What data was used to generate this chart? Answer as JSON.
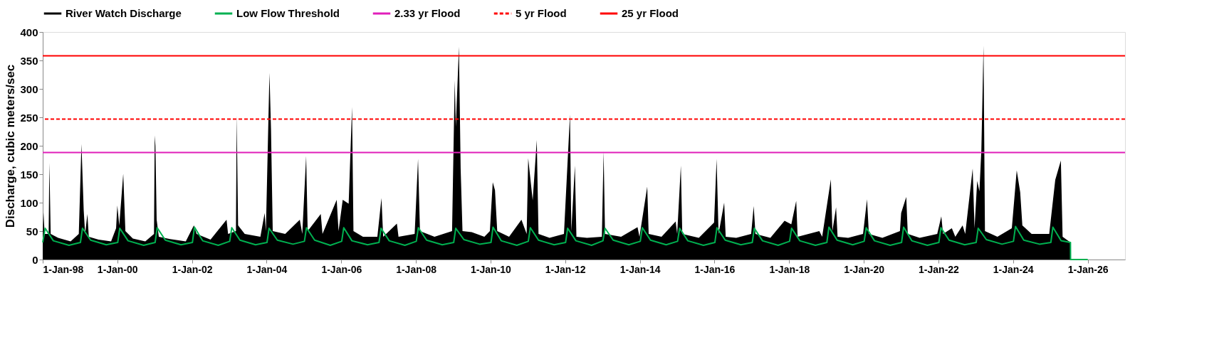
{
  "chart_data": {
    "type": "area",
    "ylabel": "Discharge, cubic meters/sec",
    "legend": "top",
    "grid": false,
    "marker": "none",
    "xlim": [
      "1998-01-01",
      "2027-01-01"
    ],
    "xticks": [
      {
        "value": "1998-01-01",
        "label": "1-Jan-98"
      },
      {
        "value": "2000-01-01",
        "label": "1-Jan-00"
      },
      {
        "value": "2002-01-01",
        "label": "1-Jan-02"
      },
      {
        "value": "2004-01-01",
        "label": "1-Jan-04"
      },
      {
        "value": "2006-01-01",
        "label": "1-Jan-06"
      },
      {
        "value": "2008-01-01",
        "label": "1-Jan-08"
      },
      {
        "value": "2010-01-01",
        "label": "1-Jan-10"
      },
      {
        "value": "2012-01-01",
        "label": "1-Jan-12"
      },
      {
        "value": "2014-01-01",
        "label": "1-Jan-14"
      },
      {
        "value": "2016-01-01",
        "label": "1-Jan-16"
      },
      {
        "value": "2018-01-01",
        "label": "1-Jan-18"
      },
      {
        "value": "2020-01-01",
        "label": "1-Jan-20"
      },
      {
        "value": "2022-01-01",
        "label": "1-Jan-22"
      },
      {
        "value": "2024-01-01",
        "label": "1-Jan-24"
      },
      {
        "value": "2026-01-01",
        "label": "1-Jan-26"
      }
    ],
    "ylim": [
      0,
      400
    ],
    "yticks": [
      0,
      50,
      100,
      150,
      200,
      250,
      300,
      350,
      400
    ],
    "series": [
      {
        "name": "River Watch Discharge",
        "color": "#000000",
        "x": [
          "1998-01-01",
          "1998-01-08",
          "1998-01-20",
          "1998-02-28",
          "1998-03-07",
          "1998-03-20",
          "1998-06-01",
          "1998-10-01",
          "1998-12-20",
          "1999-01-15",
          "1999-02-06",
          "1999-02-20",
          "1999-03-14",
          "1999-03-28",
          "1999-07-01",
          "1999-11-01",
          "1999-12-20",
          "2000-01-01",
          "2000-01-20",
          "2000-02-28",
          "2000-03-20",
          "2000-06-01",
          "2000-10-01",
          "2000-12-25",
          "2001-01-01",
          "2001-01-08",
          "2001-01-20",
          "2001-02-10",
          "2001-06-01",
          "2001-11-01",
          "2002-01-19",
          "2002-02-15",
          "2002-07-01",
          "2002-12-05",
          "2002-12-20",
          "2003-03-07",
          "2003-03-14",
          "2003-03-28",
          "2003-06-01",
          "2003-11-01",
          "2003-12-13",
          "2003-12-25",
          "2004-01-29",
          "2004-02-13",
          "2004-03-01",
          "2004-07-01",
          "2004-11-21",
          "2004-12-15",
          "2005-01-22",
          "2005-02-06",
          "2005-06-14",
          "2005-07-01",
          "2005-11-17",
          "2005-12-05",
          "2006-01-15",
          "2006-03-14",
          "2006-04-16",
          "2006-04-30",
          "2006-08-01",
          "2006-12-20",
          "2007-01-29",
          "2007-02-15",
          "2007-06-29",
          "2007-07-15",
          "2007-12-20",
          "2008-01-22",
          "2008-02-10",
          "2008-07-01",
          "2008-12-20",
          "2009-01-15",
          "2009-01-26",
          "2009-02-25",
          "2009-03-14",
          "2009-04-01",
          "2009-07-01",
          "2009-11-01",
          "2009-12-25",
          "2010-01-22",
          "2010-02-13",
          "2010-03-07",
          "2010-07-01",
          "2010-10-30",
          "2010-12-20",
          "2011-01-04",
          "2011-02-17",
          "2011-03-29",
          "2011-04-15",
          "2011-08-01",
          "2011-12-20",
          "2012-02-17",
          "2012-03-01",
          "2012-04-05",
          "2012-04-20",
          "2012-08-01",
          "2012-12-25",
          "2013-01-11",
          "2013-01-25",
          "2013-07-01",
          "2013-12-09",
          "2013-12-28",
          "2014-03-14",
          "2014-03-28",
          "2014-08-01",
          "2014-12-17",
          "2015-01-01",
          "2015-02-06",
          "2015-02-20",
          "2015-08-01",
          "2015-12-28",
          "2016-01-22",
          "2016-02-10",
          "2016-04-05",
          "2016-04-20",
          "2016-08-01",
          "2016-12-25",
          "2017-01-19",
          "2017-02-05",
          "2017-07-01",
          "2017-11-17",
          "2018-01-22",
          "2018-03-11",
          "2018-03-25",
          "2018-10-23",
          "2018-11-20",
          "2019-02-13",
          "2019-02-28",
          "2019-04-05",
          "2019-04-20",
          "2019-08-01",
          "2019-12-25",
          "2020-02-02",
          "2020-02-20",
          "2020-07-01",
          "2020-12-20",
          "2021-01-01",
          "2021-02-20",
          "2021-03-07",
          "2021-07-01",
          "2021-12-20",
          "2022-01-29",
          "2022-02-15",
          "2022-05-12",
          "2022-06-15",
          "2022-08-25",
          "2022-09-20",
          "2022-12-02",
          "2022-12-20",
          "2023-01-15",
          "2023-02-06",
          "2023-02-25",
          "2023-03-18",
          "2023-04-01",
          "2023-08-01",
          "2023-12-20",
          "2024-02-06",
          "2024-03-11",
          "2024-04-01",
          "2024-07-01",
          "2024-12-20",
          "2025-02-17",
          "2025-04-13",
          "2025-04-30",
          "2025-07-16"
        ],
        "values": [
          40,
          83,
          45,
          45,
          170,
          45,
          38,
          32,
          45,
          203,
          87,
          45,
          80,
          40,
          35,
          32,
          55,
          95,
          60,
          151,
          50,
          37,
          32,
          45,
          218,
          200,
          70,
          40,
          36,
          32,
          60,
          45,
          35,
          70,
          45,
          50,
          253,
          60,
          45,
          40,
          82,
          50,
          328,
          230,
          50,
          45,
          70,
          45,
          182,
          50,
          80,
          45,
          105,
          50,
          105,
          98,
          268,
          50,
          40,
          40,
          108,
          40,
          63,
          40,
          45,
          177,
          50,
          40,
          50,
          315,
          233,
          374,
          160,
          50,
          48,
          40,
          50,
          136,
          122,
          50,
          40,
          70,
          45,
          178,
          104,
          210,
          45,
          38,
          45,
          255,
          50,
          165,
          40,
          38,
          40,
          190,
          45,
          40,
          57,
          40,
          128,
          45,
          40,
          67,
          45,
          165,
          45,
          38,
          65,
          177,
          45,
          100,
          40,
          38,
          45,
          94,
          45,
          38,
          68,
          62,
          103,
          40,
          50,
          40,
          141,
          50,
          92,
          40,
          38,
          45,
          106,
          45,
          38,
          50,
          82,
          110,
          45,
          38,
          45,
          76,
          45,
          55,
          40,
          60,
          45,
          160,
          55,
          138,
          120,
          193,
          376,
          50,
          40,
          55,
          157,
          118,
          60,
          45,
          45,
          140,
          174,
          40,
          30
        ]
      },
      {
        "name": "Low Flow Threshold",
        "type": "line",
        "color": "#00b050",
        "x": [
          "1998-01-01",
          "1998-01-25",
          "1998-04-15",
          "1998-09-15",
          "1999-01-05",
          "1999-01-25",
          "1999-04-15",
          "1999-09-15",
          "2000-01-05",
          "2000-01-25",
          "2000-04-15",
          "2000-09-15",
          "2001-01-05",
          "2001-01-25",
          "2001-04-15",
          "2001-09-15",
          "2002-01-05",
          "2002-01-25",
          "2002-04-15",
          "2002-09-15",
          "2003-01-05",
          "2003-01-25",
          "2003-04-15",
          "2003-09-15",
          "2004-01-05",
          "2004-01-25",
          "2004-04-15",
          "2004-09-15",
          "2005-01-05",
          "2005-01-25",
          "2005-04-15",
          "2005-09-15",
          "2006-01-05",
          "2006-01-25",
          "2006-04-15",
          "2006-09-15",
          "2007-01-05",
          "2007-01-25",
          "2007-04-15",
          "2007-09-15",
          "2008-01-05",
          "2008-01-25",
          "2008-04-15",
          "2008-09-15",
          "2009-01-05",
          "2009-01-25",
          "2009-04-15",
          "2009-09-15",
          "2010-01-05",
          "2010-01-25",
          "2010-04-15",
          "2010-09-15",
          "2011-01-05",
          "2011-01-25",
          "2011-04-15",
          "2011-09-15",
          "2012-01-05",
          "2012-01-25",
          "2012-04-15",
          "2012-09-15",
          "2013-01-05",
          "2013-01-25",
          "2013-04-15",
          "2013-09-15",
          "2014-01-05",
          "2014-01-25",
          "2014-04-15",
          "2014-09-15",
          "2015-01-05",
          "2015-01-25",
          "2015-04-15",
          "2015-09-15",
          "2016-01-05",
          "2016-01-25",
          "2016-04-15",
          "2016-09-15",
          "2017-01-05",
          "2017-01-25",
          "2017-04-15",
          "2017-09-15",
          "2018-01-05",
          "2018-01-25",
          "2018-04-15",
          "2018-09-15",
          "2019-01-05",
          "2019-01-25",
          "2019-04-15",
          "2019-09-15",
          "2020-01-05",
          "2020-01-25",
          "2020-04-15",
          "2020-09-15",
          "2021-01-05",
          "2021-01-25",
          "2021-04-15",
          "2021-09-15",
          "2022-01-05",
          "2022-01-25",
          "2022-04-15",
          "2022-09-15",
          "2023-01-05",
          "2023-01-25",
          "2023-04-15",
          "2023-09-15",
          "2024-01-05",
          "2024-01-25",
          "2024-04-15",
          "2024-09-15",
          "2025-01-05",
          "2025-01-25",
          "2025-04-15",
          "2025-07-16",
          "2025-07-17",
          "2026-01-01"
        ],
        "values": [
          30,
          55,
          33,
          25,
          30,
          55,
          34,
          26,
          30,
          55,
          33,
          25,
          30,
          56,
          34,
          26,
          30,
          57,
          33,
          25,
          32,
          56,
          34,
          26,
          30,
          55,
          34,
          27,
          32,
          56,
          34,
          25,
          32,
          56,
          33,
          26,
          30,
          55,
          33,
          25,
          32,
          56,
          34,
          26,
          30,
          55,
          35,
          27,
          30,
          57,
          33,
          25,
          32,
          56,
          34,
          26,
          30,
          55,
          33,
          25,
          33,
          55,
          34,
          26,
          32,
          56,
          34,
          26,
          32,
          55,
          33,
          25,
          30,
          56,
          34,
          26,
          30,
          55,
          33,
          25,
          32,
          55,
          33,
          25,
          30,
          57,
          34,
          26,
          32,
          56,
          33,
          25,
          30,
          57,
          33,
          25,
          30,
          56,
          34,
          26,
          30,
          55,
          35,
          27,
          32,
          58,
          34,
          27,
          30,
          57,
          33,
          30,
          0,
          0
        ]
      }
    ],
    "ref_lines": [
      {
        "axis": "y",
        "value": 188,
        "label": "2.33 yr Flood",
        "color": "#e01fba",
        "line_style": "solid"
      },
      {
        "axis": "y",
        "value": 247,
        "label": "5 yr Flood",
        "color": "#ff0000",
        "line_style": "dashed"
      },
      {
        "axis": "y",
        "value": 358,
        "label": "25 yr Flood",
        "color": "#ff0000",
        "line_style": "solid"
      }
    ]
  }
}
